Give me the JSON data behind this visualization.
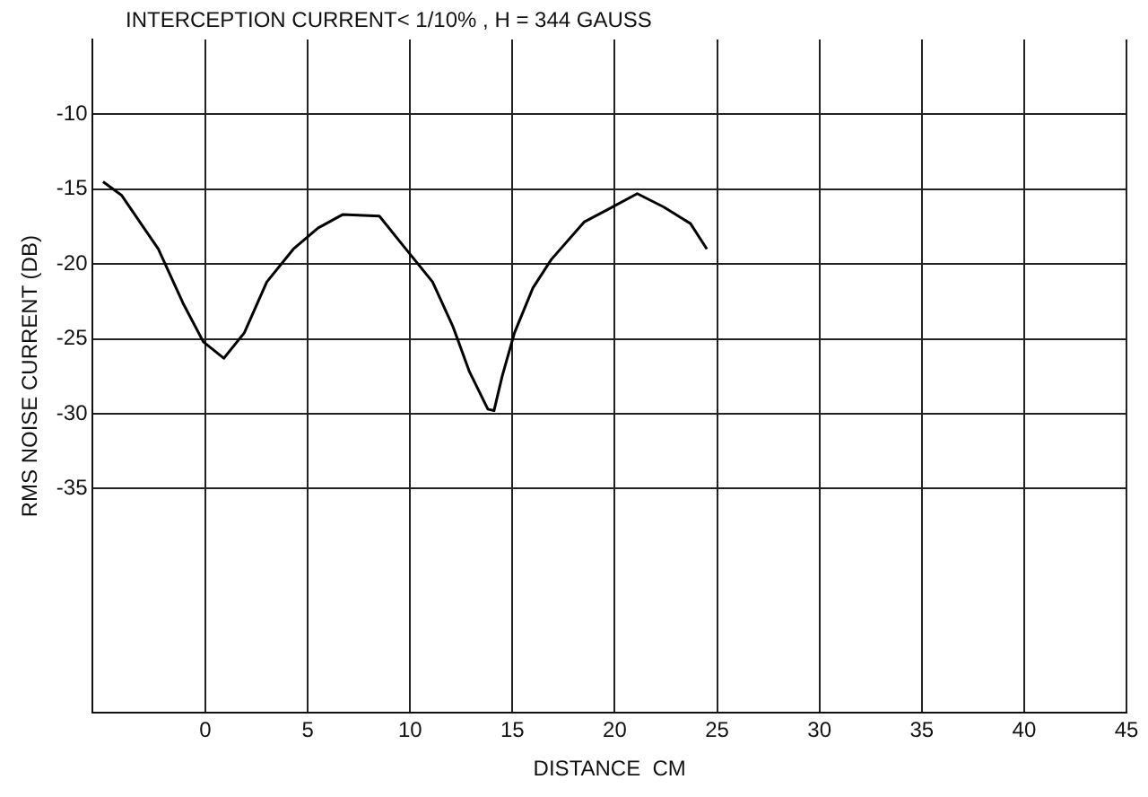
{
  "chart_data": {
    "type": "line",
    "title": "INTERCEPTION CURRENT< 1/10% , H = 344 GAUSS",
    "xlabel": "DISTANCE  CM",
    "ylabel": "RMS NOISE CURRENT (DB)",
    "x": [
      -5,
      -4.1,
      -2.3,
      -1.1,
      -0.1,
      0.9,
      1.9,
      3,
      4.3,
      5.5,
      6.7,
      8.5,
      9.5,
      11.1,
      12.1,
      12.9,
      13.8,
      14.1,
      14.5,
      15.1,
      16,
      16.9,
      18.5,
      19.6,
      21.1,
      22.4,
      23.7,
      24.5
    ],
    "series": [
      {
        "color": "#000000",
        "values": [
          -14.5,
          -15.4,
          -19,
          -22.6,
          -25.2,
          -26.3,
          -24.6,
          -21.2,
          -19,
          -17.6,
          -16.7,
          -16.8,
          -18.5,
          -21.2,
          -24.2,
          -27.2,
          -29.7,
          -29.8,
          -27.5,
          -24.6,
          -21.6,
          -19.7,
          -17.2,
          -16.4,
          -15.3,
          -16.2,
          -17.3,
          -19
        ]
      }
    ],
    "xlim": [
      -5.5,
      45
    ],
    "xticks": [
      0,
      5,
      10,
      15,
      20,
      25,
      30,
      35,
      40,
      45
    ],
    "ylim": [
      -50,
      -5
    ],
    "yticks": [
      -10,
      -15,
      -20,
      -25,
      -30,
      -35
    ],
    "grid": true,
    "marker": "none",
    "line_style": "solid"
  }
}
